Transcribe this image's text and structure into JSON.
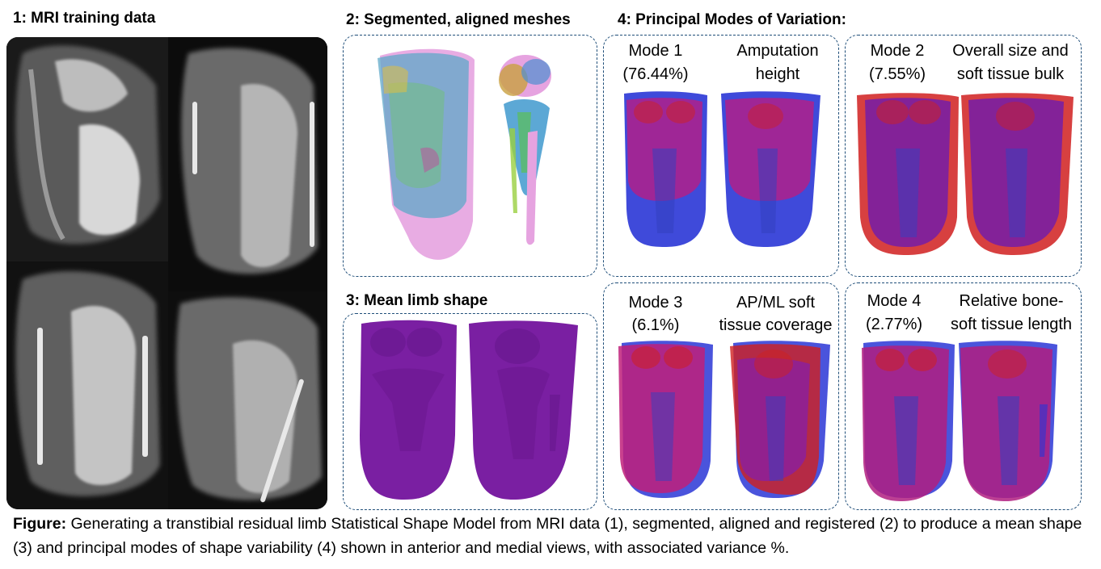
{
  "headings": {
    "mri": "1: MRI training data",
    "segmented": "2: Segmented, aligned meshes",
    "mean": "3: Mean limb shape",
    "modes": "4: Principal Modes of Variation:"
  },
  "modes": [
    {
      "name": "Mode 1",
      "variance": "(76.44%)",
      "description_line1": "Amputation",
      "description_line2": "height"
    },
    {
      "name": "Mode 2",
      "variance": "(7.55%)",
      "description_line1": "Overall size and",
      "description_line2": "soft tissue bulk"
    },
    {
      "name": "Mode 3",
      "variance": "(6.1%)",
      "description_line1": "AP/ML soft",
      "description_line2": "tissue coverage"
    },
    {
      "name": "Mode 4",
      "variance": "(2.77%)",
      "description_line1": "Relative bone-",
      "description_line2": "soft tissue length"
    }
  ],
  "caption": {
    "label": "Figure:",
    "text": " Generating a transtibial residual limb Statistical Shape Model from MRI data (1), segmented, aligned and registered (2) to produce a mean shape (3) and principal modes of shape variability (4) shown in anterior and medial views, with associated variance %."
  },
  "colors": {
    "panel_border": "#1f4e79",
    "mean_shape": "#7a1fa2",
    "mode_positive": "#d01f1f",
    "mode_negative": "#2a36d6",
    "mesh_pink": "#e6a3e0"
  }
}
